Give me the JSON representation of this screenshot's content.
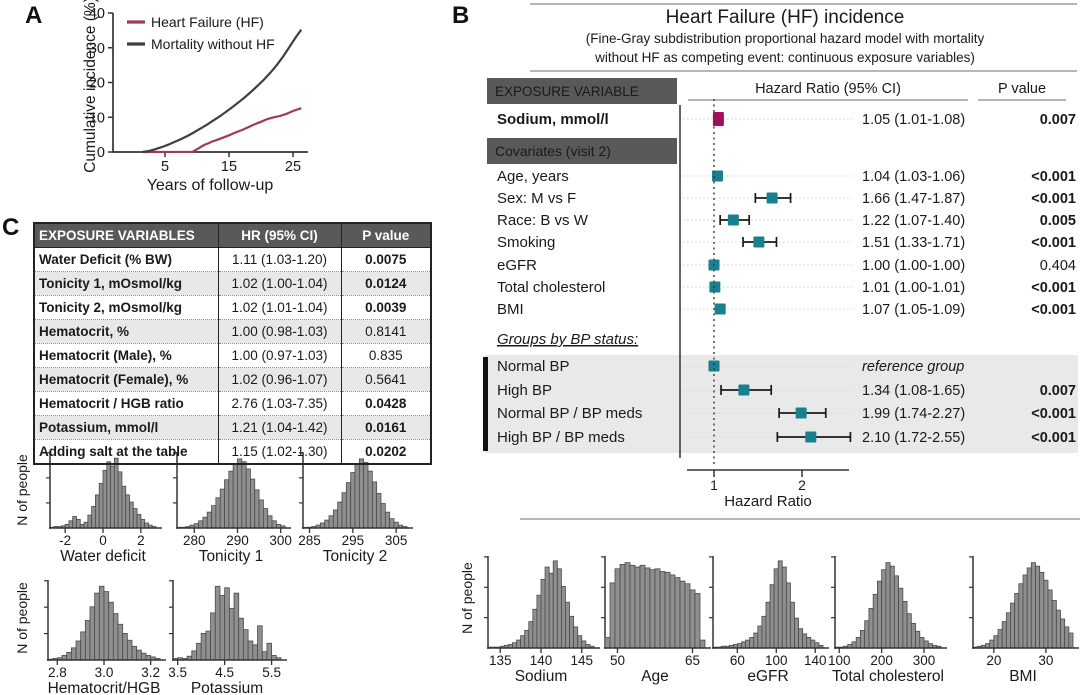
{
  "colors": {
    "exposure_marker": "#A80D5B",
    "covariate_marker": "#1A7F8E",
    "section_bg": "#59595B",
    "group_bg": "#E9E9E9",
    "hist_fill": "#8F8F8F",
    "hist_stroke": "#4B4B4B",
    "hf_line": "#A03A5A",
    "mortality_line": "#3F3F45"
  },
  "panel_a": {
    "label": "A",
    "hist_ylabel": "N of people"
  },
  "panel_b": {
    "label": "B",
    "title": "Heart Failure (HF) incidence",
    "subtitle_line1": "(Fine-Gray subdistribution proportional hazard model with mortality",
    "subtitle_line2": "without HF as competing event: continuous exposure variables)",
    "column_headers": {
      "exposure": "EXPOSURE VARIABLE",
      "hazard": "Hazard Ratio (95% CI)",
      "p": "P value"
    },
    "hist_ylabel": "N of people",
    "forest": {
      "axis_label": "Hazard Ratio",
      "axis_ticks": [
        "1",
        "2"
      ],
      "rows": [
        {
          "type": "exposure",
          "label": "Sodium, mmol/l",
          "bold": true,
          "hr": 1.05,
          "lo": 1.01,
          "hi": 1.08,
          "hr_text": "1.05 (1.01-1.08)",
          "p": "0.007",
          "p_bold": true
        },
        {
          "type": "section",
          "label": "Covariates (visit 2)"
        },
        {
          "type": "row",
          "label": "Age, years",
          "hr": 1.04,
          "lo": 1.03,
          "hi": 1.06,
          "hr_text": "1.04 (1.03-1.06)",
          "p": "<0.001",
          "p_bold": true
        },
        {
          "type": "row",
          "label": "Sex: M vs F",
          "hr": 1.66,
          "lo": 1.47,
          "hi": 1.87,
          "hr_text": "1.66 (1.47-1.87)",
          "p": "<0.001",
          "p_bold": true
        },
        {
          "type": "row",
          "label": "Race: B vs W",
          "hr": 1.22,
          "lo": 1.07,
          "hi": 1.4,
          "hr_text": "1.22 (1.07-1.40)",
          "p": "0.005",
          "p_bold": true
        },
        {
          "type": "row",
          "label": "Smoking",
          "hr": 1.51,
          "lo": 1.33,
          "hi": 1.71,
          "hr_text": "1.51 (1.33-1.71)",
          "p": "<0.001",
          "p_bold": true
        },
        {
          "type": "row",
          "label": "eGFR",
          "hr": 1.0,
          "lo": 1.0,
          "hi": 1.0,
          "hr_text": "1.00 (1.00-1.00)",
          "p": "0.404",
          "p_bold": false
        },
        {
          "type": "row",
          "label": "Total cholesterol",
          "hr": 1.01,
          "lo": 1.0,
          "hi": 1.01,
          "hr_text": "1.01 (1.00-1.01)",
          "p": "<0.001",
          "p_bold": true
        },
        {
          "type": "row",
          "label": "BMI",
          "hr": 1.07,
          "lo": 1.05,
          "hi": 1.09,
          "hr_text": "1.07 (1.05-1.09)",
          "p": "<0.001",
          "p_bold": true
        },
        {
          "type": "subheader",
          "label": "Groups by BP status:"
        },
        {
          "type": "group-row",
          "label": "Normal BP",
          "hr": 1.0,
          "hr_text": "reference group",
          "reference": true
        },
        {
          "type": "group-row",
          "label": "High BP",
          "hr": 1.34,
          "lo": 1.08,
          "hi": 1.65,
          "hr_text": "1.34 (1.08-1.65)",
          "p": "0.007",
          "p_bold": true
        },
        {
          "type": "group-row",
          "label": "Normal BP / BP meds",
          "hr": 1.99,
          "lo": 1.74,
          "hi": 2.27,
          "hr_text": "1.99 (1.74-2.27)",
          "p": "<0.001",
          "p_bold": true
        },
        {
          "type": "group-row",
          "label": "High BP / BP meds",
          "hr": 2.1,
          "lo": 1.72,
          "hi": 2.55,
          "hr_text": "2.10 (1.72-2.55)",
          "p": "<0.001",
          "p_bold": true
        }
      ]
    }
  },
  "panel_c": {
    "label": "C",
    "hist_ylabel": "N of people",
    "table": {
      "headers": [
        "EXPOSURE VARIABLES",
        "HR (95% CI)",
        "P value"
      ],
      "rows": [
        {
          "label": "Water Deficit (% BW)",
          "hr": "1.11 (1.03-1.20)",
          "p": "0.0075",
          "p_bold": true
        },
        {
          "label": "Tonicity 1, mOsmol/kg",
          "hr": "1.02 (1.00-1.04)",
          "p": "0.0124",
          "p_bold": true
        },
        {
          "label": "Tonicity 2, mOsmol/kg",
          "hr": "1.02 (1.01-1.04)",
          "p": "0.0039",
          "p_bold": true
        },
        {
          "label": "Hematocrit, %",
          "hr": "1.00 (0.98-1.03)",
          "p": "0.8141",
          "p_bold": false
        },
        {
          "label": "Hematocrit (Male), %",
          "hr": "1.00 (0.97-1.03)",
          "p": "0.835",
          "p_bold": false
        },
        {
          "label": "Hematocrit (Female), %",
          "hr": "1.02 (0.96-1.07)",
          "p": "0.5641",
          "p_bold": false
        },
        {
          "label": "Hematocrit / HGB ratio",
          "hr": "2.76 (1.03-7.35)",
          "p": "0.0428",
          "p_bold": true
        },
        {
          "label": "Potassium, mmol/l",
          "hr": "1.21 (1.04-1.42)",
          "p": "0.0161",
          "p_bold": true
        },
        {
          "label": "Adding salt at the table",
          "hr": "1.15 (1.02-1.30)",
          "p": "0.0202",
          "p_bold": true
        }
      ]
    }
  },
  "chart_data": [
    {
      "id": "hf-incidence",
      "panel": "A",
      "type": "line",
      "xlabel": "Years of follow-up",
      "ylabel": "Cumulative incidence (%)",
      "xlim": [
        0,
        27.5
      ],
      "ylim": [
        0,
        40
      ],
      "xticks": [
        5,
        15,
        25
      ],
      "yticks": [
        0,
        10,
        20,
        30,
        40
      ],
      "legend_position": "top-left-inside",
      "series": [
        {
          "name": "Heart Failure (HF)",
          "color": "#A03A5A",
          "points": [
            [
              1.5,
              0
            ],
            [
              9.3,
              0.05
            ],
            [
              9.8,
              0.6
            ],
            [
              10.3,
              1.1
            ],
            [
              10.8,
              1.7
            ],
            [
              11.3,
              2.2
            ],
            [
              11.8,
              2.5
            ],
            [
              12.3,
              3.0
            ],
            [
              13,
              3.4
            ],
            [
              14,
              4.1
            ],
            [
              15,
              4.8
            ],
            [
              16,
              5.6
            ],
            [
              17,
              6.3
            ],
            [
              18,
              7.1
            ],
            [
              19,
              8.0
            ],
            [
              20,
              8.7
            ],
            [
              21,
              9.5
            ],
            [
              22,
              10.0
            ],
            [
              23,
              10.4
            ],
            [
              24,
              11.0
            ],
            [
              25,
              11.8
            ],
            [
              26.3,
              12.6
            ]
          ]
        },
        {
          "name": "Mortality without HF",
          "color": "#3F3F45",
          "points": [
            [
              1.5,
              0
            ],
            [
              2.5,
              0.3
            ],
            [
              3.5,
              0.8
            ],
            [
              4.5,
              1.4
            ],
            [
              5.5,
              2.1
            ],
            [
              6.5,
              2.9
            ],
            [
              7.5,
              3.7
            ],
            [
              8.5,
              4.6
            ],
            [
              9.5,
              5.6
            ],
            [
              10.5,
              6.7
            ],
            [
              11.5,
              7.8
            ],
            [
              12.5,
              9.0
            ],
            [
              13.5,
              10.2
            ],
            [
              14.5,
              11.5
            ],
            [
              15.5,
              12.9
            ],
            [
              16.5,
              14.3
            ],
            [
              17.5,
              15.8
            ],
            [
              18.5,
              17.4
            ],
            [
              19.5,
              19.1
            ],
            [
              20.5,
              20.9
            ],
            [
              21.5,
              22.9
            ],
            [
              22.5,
              25.1
            ],
            [
              23.5,
              27.6
            ],
            [
              24.5,
              30.4
            ],
            [
              25.5,
              33.2
            ],
            [
              26.3,
              35.2
            ]
          ]
        }
      ]
    },
    {
      "id": "water-deficit",
      "panel": "C",
      "type": "bar",
      "xlabel": "Water deficit",
      "ylabel": "N of people",
      "xlim": [
        -2.8,
        2.8
      ],
      "xticks": [
        -2,
        0,
        2
      ],
      "tick_labels": [
        "-2",
        "0",
        "2"
      ],
      "values": [
        1,
        2,
        2,
        3,
        5,
        10,
        16,
        12,
        5,
        8,
        18,
        30,
        46,
        62,
        80,
        92,
        86,
        97,
        78,
        58,
        46,
        36,
        27,
        19,
        12,
        7,
        4,
        2
      ]
    },
    {
      "id": "tonicity-1",
      "panel": "C",
      "type": "bar",
      "xlabel": "Tonicity 1",
      "ylabel": "N of people",
      "xlim": [
        276,
        301
      ],
      "xticks": [
        280,
        290,
        300
      ],
      "tick_labels": [
        "280",
        "290",
        "300"
      ],
      "values": [
        1,
        1,
        2,
        4,
        6,
        10,
        15,
        22,
        31,
        42,
        54,
        67,
        79,
        89,
        96,
        92,
        82,
        68,
        53,
        39,
        27,
        17,
        10,
        5,
        3
      ]
    },
    {
      "id": "tonicity-2",
      "panel": "C",
      "type": "bar",
      "xlabel": "Tonicity 2",
      "ylabel": "N of people",
      "xlim": [
        283.5,
        307.5
      ],
      "xticks": [
        285,
        295,
        305
      ],
      "tick_labels": [
        "285",
        "295",
        "305"
      ],
      "values": [
        1,
        1,
        2,
        4,
        7,
        11,
        17,
        25,
        36,
        49,
        63,
        77,
        88,
        96,
        91,
        79,
        64,
        48,
        34,
        22,
        13,
        8,
        4,
        2
      ]
    },
    {
      "id": "hematocrit-hgb",
      "panel": "C",
      "type": "bar",
      "xlabel": "Hematocrit/HGB",
      "ylabel": "N of people",
      "xlim": [
        2.76,
        3.24
      ],
      "xticks": [
        2.8,
        3.0,
        3.2
      ],
      "tick_labels": [
        "2.8",
        "3.0",
        "3.2"
      ],
      "values": [
        1,
        2,
        3,
        6,
        10,
        16,
        25,
        37,
        52,
        70,
        88,
        97,
        90,
        76,
        61,
        47,
        35,
        26,
        18,
        13,
        9,
        6,
        4,
        2
      ]
    },
    {
      "id": "potassium",
      "panel": "C",
      "type": "bar",
      "xlabel": "Potassium",
      "ylabel": "N of people",
      "xlim": [
        3.4,
        5.7
      ],
      "xticks": [
        3.5,
        4.5,
        5.5
      ],
      "tick_labels": [
        "3.5",
        "4.5",
        "5.5"
      ],
      "values": [
        2,
        3,
        2,
        5,
        12,
        22,
        35,
        38,
        62,
        97,
        85,
        95,
        68,
        88,
        55,
        40,
        25,
        20,
        45,
        11,
        22,
        6,
        3
      ]
    },
    {
      "id": "sodium",
      "panel": "B",
      "type": "bar",
      "xlabel": "Sodium",
      "ylabel": "N of people",
      "xlim": [
        133.5,
        146.5
      ],
      "xticks": [
        135,
        140,
        145
      ],
      "tick_labels": [
        "135",
        "140",
        "145"
      ],
      "values": [
        1,
        1,
        1,
        2,
        3,
        4,
        6,
        9,
        14,
        20,
        30,
        44,
        60,
        78,
        92,
        85,
        99,
        90,
        70,
        52,
        36,
        24,
        14,
        8,
        4,
        2
      ]
    },
    {
      "id": "age",
      "panel": "B",
      "type": "bar",
      "xlabel": "Age",
      "ylabel": "N of people",
      "xlim": [
        47.5,
        67.5
      ],
      "xticks": [
        50,
        65
      ],
      "tick_labels": [
        "50",
        "65"
      ],
      "values": [
        12,
        74,
        90,
        95,
        97,
        94,
        92,
        94,
        91,
        89,
        90,
        87,
        86,
        83,
        80,
        76,
        73,
        66,
        62,
        9
      ]
    },
    {
      "id": "egfr",
      "panel": "B",
      "type": "bar",
      "xlabel": "eGFR",
      "ylabel": "N of people",
      "xlim": [
        35,
        148
      ],
      "xticks": [
        60,
        100,
        140
      ],
      "tick_labels": [
        "60",
        "100",
        "140"
      ],
      "values": [
        1,
        1,
        2,
        2,
        3,
        4,
        5,
        7,
        9,
        12,
        17,
        25,
        36,
        52,
        72,
        90,
        99,
        92,
        74,
        52,
        34,
        22,
        16,
        12,
        9,
        6,
        3
      ]
    },
    {
      "id": "total-cholesterol",
      "panel": "B",
      "type": "bar",
      "xlabel": "Total cholesterol",
      "ylabel": "N of people",
      "xlim": [
        90,
        340
      ],
      "xticks": [
        100,
        200,
        300
      ],
      "tick_labels": [
        "100",
        "200",
        "300"
      ],
      "values": [
        1,
        1,
        2,
        4,
        7,
        12,
        20,
        31,
        45,
        61,
        76,
        89,
        97,
        93,
        82,
        68,
        53,
        39,
        28,
        19,
        12,
        8,
        5,
        3,
        2
      ]
    },
    {
      "id": "bmi",
      "panel": "B",
      "type": "bar",
      "xlabel": "BMI",
      "ylabel": "N of people",
      "xlim": [
        16,
        35.2
      ],
      "xticks": [
        20,
        30
      ],
      "tick_labels": [
        "20",
        "30"
      ],
      "values": [
        1,
        2,
        3,
        5,
        9,
        14,
        21,
        30,
        40,
        51,
        62,
        73,
        83,
        91,
        97,
        93,
        86,
        77,
        66,
        54,
        43,
        33,
        24,
        17
      ]
    }
  ]
}
